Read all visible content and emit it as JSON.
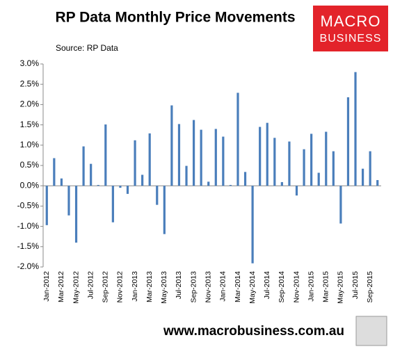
{
  "chart_data": {
    "type": "bar",
    "title": "RP Data Monthly Price Movements",
    "subtitle": "Source: RP Data",
    "categories": [
      "Jan-2012",
      null,
      "Mar-2012",
      null,
      "May-2012",
      null,
      "Jul-2012",
      null,
      "Sep-2012",
      null,
      "Nov-2012",
      null,
      "Jan-2013",
      null,
      "Mar-2013",
      null,
      "May-2013",
      null,
      "Jul-2013",
      null,
      "Sep-2013",
      null,
      "Nov-2013",
      null,
      "Jan-2014",
      null,
      "Mar-2014",
      null,
      "May-2014",
      null,
      "Jul-2014",
      null,
      "Sep-2014",
      null,
      "Nov-2014",
      null,
      "Jan-2015",
      null,
      "Mar-2015",
      null,
      "May-2015",
      null,
      "Jul-2015",
      null,
      "Sep-2015",
      null
    ],
    "values": [
      -0.97,
      0.68,
      0.18,
      -0.73,
      -1.4,
      0.97,
      0.54,
      0.02,
      1.51,
      -0.9,
      -0.05,
      -0.2,
      1.12,
      0.27,
      1.29,
      -0.47,
      -1.19,
      1.98,
      1.52,
      0.49,
      1.62,
      1.38,
      0.1,
      1.4,
      1.21,
      0.02,
      2.29,
      0.34,
      -1.91,
      1.45,
      1.55,
      1.18,
      0.09,
      1.09,
      -0.24,
      0.9,
      1.28,
      0.32,
      1.33,
      0.85,
      -0.93,
      2.18,
      2.8,
      0.42,
      0.85,
      0.14
    ],
    "color": "#4a7ebb",
    "ylim": [
      -2.0,
      3.0
    ],
    "yticks": [
      {
        "value": -2.0,
        "label": "-2.0%"
      },
      {
        "value": -1.5,
        "label": "-1.5%"
      },
      {
        "value": -1.0,
        "label": "-1.0%"
      },
      {
        "value": -0.5,
        "label": "-0.5%"
      },
      {
        "value": 0.0,
        "label": "0.0%"
      },
      {
        "value": 0.5,
        "label": "0.5%"
      },
      {
        "value": 1.0,
        "label": "1.0%"
      },
      {
        "value": 1.5,
        "label": "1.5%"
      },
      {
        "value": 2.0,
        "label": "2.0%"
      },
      {
        "value": 2.5,
        "label": "2.5%"
      },
      {
        "value": 3.0,
        "label": "3.0%"
      }
    ],
    "grid": false
  },
  "logo": {
    "line1": "MACRO",
    "line2": "BUSINESS"
  },
  "footer": "www.macrobusiness.com.au"
}
